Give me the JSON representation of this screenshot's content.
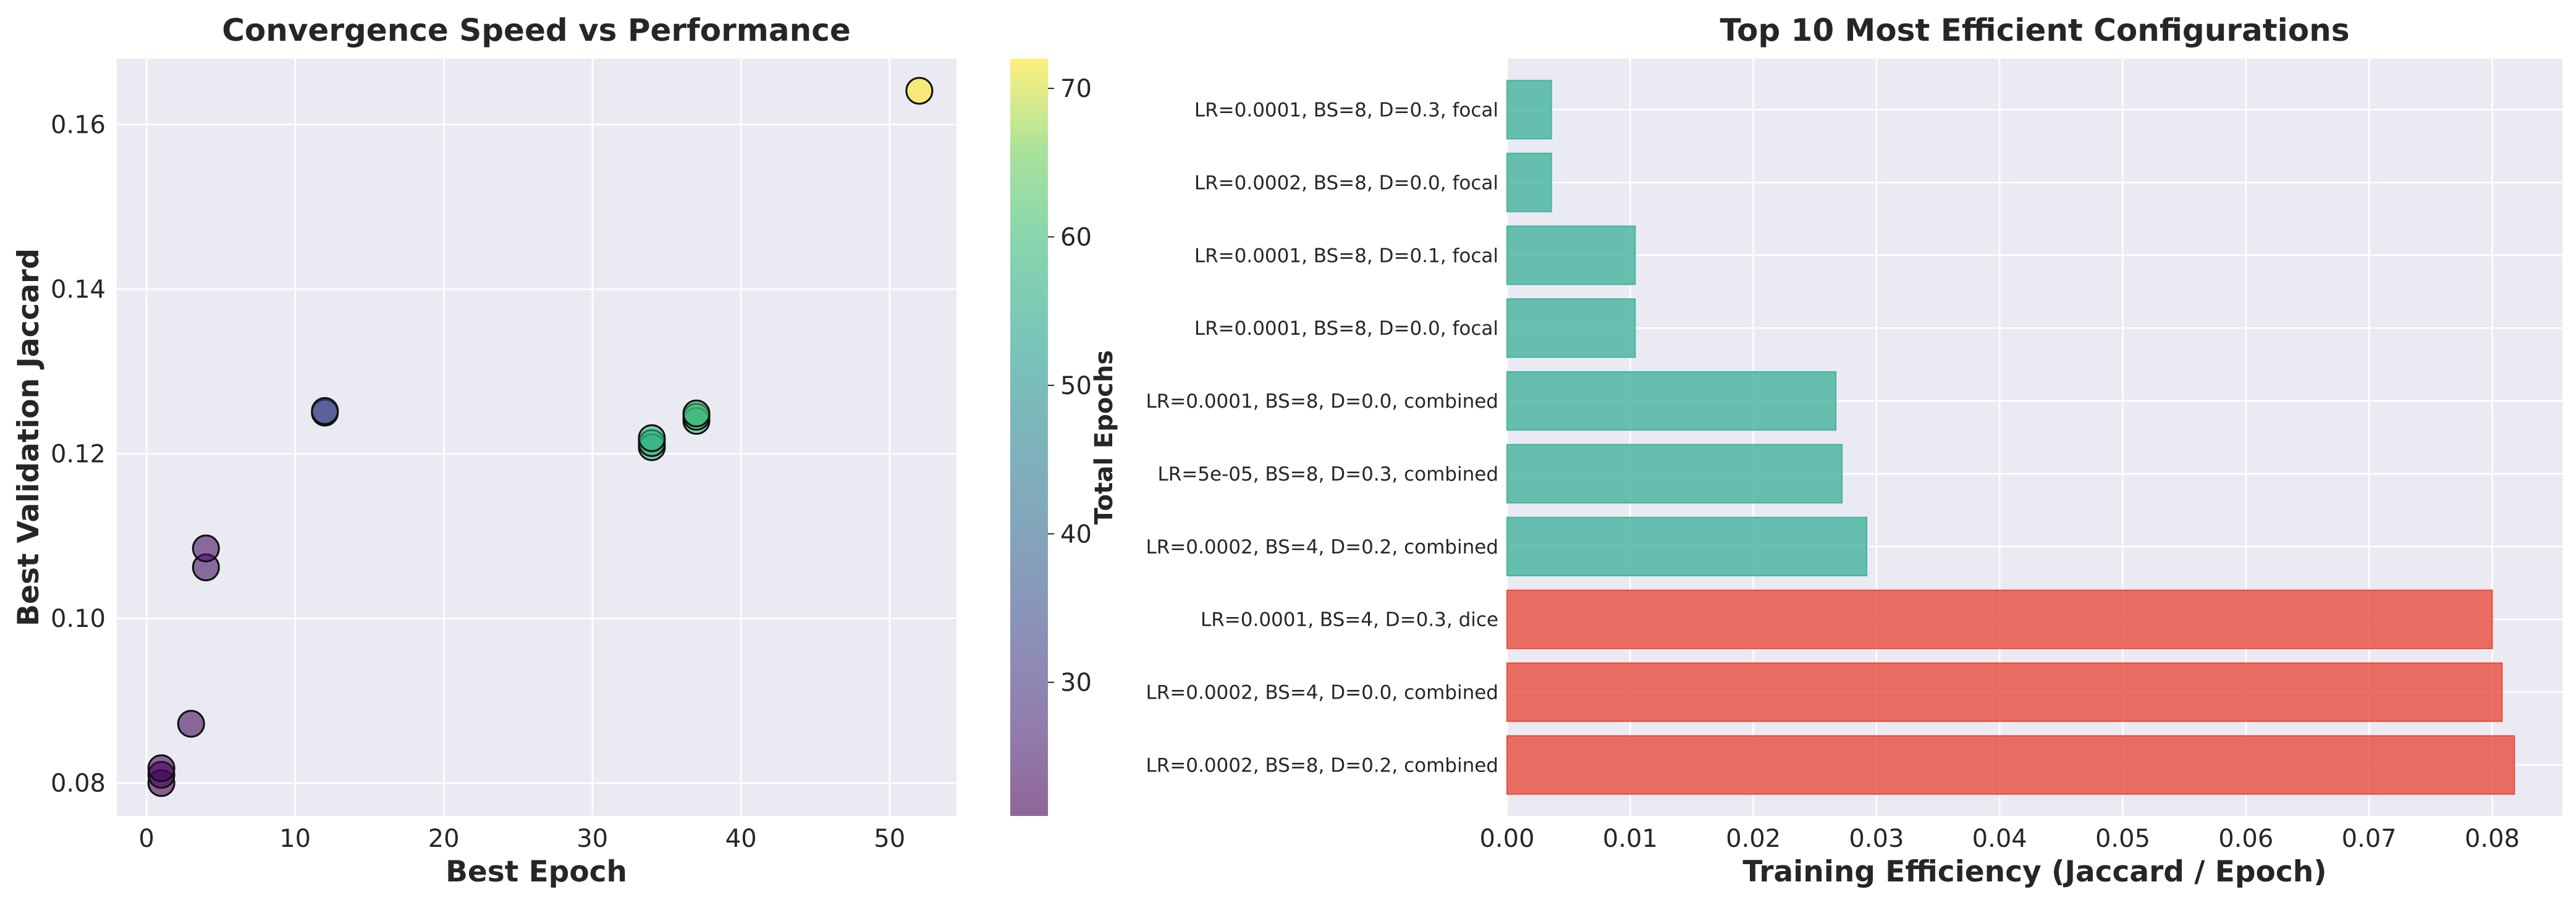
{
  "chart_data": [
    {
      "type": "scatter",
      "title": "Convergence Speed vs Performance",
      "xlabel": "Best Epoch",
      "ylabel": "Best Validation Jaccard",
      "xlim": [
        -2,
        54.5
      ],
      "ylim": [
        0.076,
        0.168
      ],
      "xticks": [
        0,
        10,
        20,
        30,
        40,
        50
      ],
      "xtick_labels": [
        "0",
        "10",
        "20",
        "30",
        "40",
        "50"
      ],
      "yticks": [
        0.08,
        0.1,
        0.12,
        0.14,
        0.16
      ],
      "ytick_labels": [
        "0.08",
        "0.10",
        "0.12",
        "0.14",
        "0.16"
      ],
      "grid": true,
      "colormap": "viridis",
      "colorbar": {
        "label": "Total Epochs",
        "range": [
          21,
          72
        ],
        "ticks": [
          30,
          40,
          50,
          60,
          70
        ],
        "tick_labels": [
          "30",
          "40",
          "50",
          "60",
          "70"
        ]
      },
      "points": [
        {
          "x": 1,
          "y": 0.08,
          "c": 21
        },
        {
          "x": 1,
          "y": 0.081,
          "c": 21
        },
        {
          "x": 1,
          "y": 0.0818,
          "c": 22
        },
        {
          "x": 3,
          "y": 0.0872,
          "c": 23
        },
        {
          "x": 4,
          "y": 0.1062,
          "c": 24
        },
        {
          "x": 4,
          "y": 0.1085,
          "c": 24
        },
        {
          "x": 12,
          "y": 0.125,
          "c": 34
        },
        {
          "x": 12,
          "y": 0.1252,
          "c": 34
        },
        {
          "x": 34,
          "y": 0.1208,
          "c": 58
        },
        {
          "x": 34,
          "y": 0.1213,
          "c": 57
        },
        {
          "x": 34,
          "y": 0.1219,
          "c": 58
        },
        {
          "x": 37,
          "y": 0.124,
          "c": 60
        },
        {
          "x": 37,
          "y": 0.1245,
          "c": 59
        },
        {
          "x": 37,
          "y": 0.1249,
          "c": 60
        },
        {
          "x": 52,
          "y": 0.1641,
          "c": 72
        }
      ]
    },
    {
      "type": "bar",
      "orientation": "horizontal",
      "title": "Top 10 Most Efficient Configurations",
      "xlabel": "Training Efficiency (Jaccard / Epoch)",
      "xlim": [
        0,
        0.0857
      ],
      "xticks": [
        0,
        0.01,
        0.02,
        0.03,
        0.04,
        0.05,
        0.06,
        0.07,
        0.08
      ],
      "xtick_labels": [
        "0.00",
        "0.01",
        "0.02",
        "0.03",
        "0.04",
        "0.05",
        "0.06",
        "0.07",
        "0.08"
      ],
      "grid": true,
      "colors": {
        "high": "#e74c3c",
        "normal": "#45b39d"
      },
      "categories": [
        "LR=0.0002, BS=8, D=0.2, combined",
        "LR=0.0002, BS=4, D=0.0, combined",
        "LR=0.0001, BS=4, D=0.3, dice",
        "LR=0.0002, BS=4, D=0.2, combined",
        "LR=5e-05, BS=8, D=0.3, combined",
        "LR=0.0001, BS=8, D=0.0, combined",
        "LR=0.0001, BS=8, D=0.0, focal",
        "LR=0.0001, BS=8, D=0.1, focal",
        "LR=0.0002, BS=8, D=0.0, focal",
        "LR=0.0001, BS=8, D=0.3, focal"
      ],
      "values": [
        0.0818,
        0.0808,
        0.08,
        0.0292,
        0.0272,
        0.0267,
        0.0104,
        0.0104,
        0.0036,
        0.0036
      ],
      "highlight": [
        true,
        true,
        true,
        false,
        false,
        false,
        false,
        false,
        false,
        false
      ]
    }
  ]
}
